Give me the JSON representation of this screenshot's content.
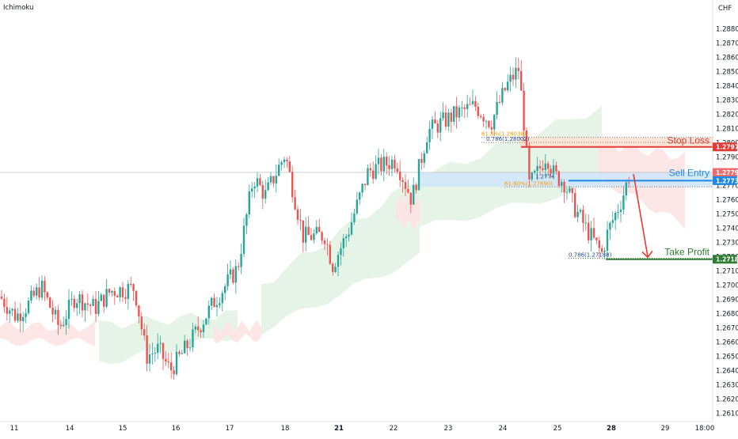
{
  "indicator_label": "Ichimoku",
  "currency": "CHF",
  "colors": {
    "up": "#26a69a",
    "down": "#ef5350",
    "cloud_bull": "#e3f3e6",
    "cloud_bear": "#fde3e3",
    "stop": "#e53935",
    "entry": "#1e88e5",
    "tp": "#2e7d32",
    "fib": "#ff9800"
  },
  "chart_data": {
    "type": "candlestick",
    "ylim": [
      1.2605,
      1.2885
    ],
    "y_ticks": [
      "1.28800",
      "1.28700",
      "1.28600",
      "1.28500",
      "1.28400",
      "1.28300",
      "1.28200",
      "1.28100",
      "1.28000",
      "1.27900",
      "1.27800",
      "1.27700",
      "1.27600",
      "1.27500",
      "1.27400",
      "1.27300",
      "1.27200",
      "1.27100",
      "1.27000",
      "1.26900",
      "1.26800",
      "1.26700",
      "1.26600",
      "1.26500",
      "1.26400",
      "1.26300",
      "1.26200",
      "1.26100"
    ],
    "x_labels": [
      "11",
      "14",
      "15",
      "16",
      "17",
      "18",
      "21",
      "22",
      "23",
      "24",
      "25",
      "28",
      "29",
      "18:00"
    ],
    "x_label_weights": [
      "normal",
      "normal",
      "normal",
      "normal",
      "normal",
      "normal",
      "bold",
      "normal",
      "normal",
      "normal",
      "normal",
      "bold",
      "normal",
      "normal"
    ],
    "anchors": [
      {
        "x": 0,
        "c": 1.2692
      },
      {
        "x": 20,
        "c": 1.2678
      },
      {
        "x": 35,
        "c": 1.2686
      },
      {
        "x": 52,
        "c": 1.2699
      },
      {
        "x": 75,
        "c": 1.267
      },
      {
        "x": 95,
        "c": 1.2692
      },
      {
        "x": 120,
        "c": 1.2684
      },
      {
        "x": 140,
        "c": 1.2696
      },
      {
        "x": 170,
        "c": 1.2698
      },
      {
        "x": 185,
        "c": 1.265
      },
      {
        "x": 200,
        "c": 1.2655
      },
      {
        "x": 215,
        "c": 1.264
      },
      {
        "x": 240,
        "c": 1.266
      },
      {
        "x": 270,
        "c": 1.2688
      },
      {
        "x": 300,
        "c": 1.2712
      },
      {
        "x": 320,
        "c": 1.2776
      },
      {
        "x": 335,
        "c": 1.2763
      },
      {
        "x": 360,
        "c": 1.2792
      },
      {
        "x": 383,
        "c": 1.2734
      },
      {
        "x": 410,
        "c": 1.2735
      },
      {
        "x": 420,
        "c": 1.2714
      },
      {
        "x": 440,
        "c": 1.2738
      },
      {
        "x": 465,
        "c": 1.278
      },
      {
        "x": 500,
        "c": 1.2788
      },
      {
        "x": 520,
        "c": 1.276
      },
      {
        "x": 540,
        "c": 1.2808
      },
      {
        "x": 575,
        "c": 1.282
      },
      {
        "x": 600,
        "c": 1.2826
      },
      {
        "x": 620,
        "c": 1.2814
      },
      {
        "x": 640,
        "c": 1.284
      },
      {
        "x": 655,
        "c": 1.2852
      },
      {
        "x": 662,
        "c": 1.2812
      },
      {
        "x": 668,
        "c": 1.277
      },
      {
        "x": 680,
        "c": 1.278
      },
      {
        "x": 690,
        "c": 1.2792
      },
      {
        "x": 700,
        "c": 1.2777
      },
      {
        "x": 712,
        "c": 1.2773
      },
      {
        "x": 725,
        "c": 1.2755
      },
      {
        "x": 740,
        "c": 1.274
      },
      {
        "x": 760,
        "c": 1.2722
      },
      {
        "x": 768,
        "c": 1.2738
      },
      {
        "x": 785,
        "c": 1.276
      },
      {
        "x": 795,
        "c": 1.2778
      }
    ],
    "cloud_spans": [
      {
        "x": [
          0,
          120
        ],
        "top": [
          1.2671,
          1.2671
        ],
        "bot": [
          1.266,
          1.266
        ],
        "bull": false
      },
      {
        "x": [
          125,
          300
        ],
        "top": [
          1.2672,
          1.268
        ],
        "bot": [
          1.2645,
          1.2665
        ],
        "bull": true
      },
      {
        "x": [
          270,
          330
        ],
        "top": [
          1.267,
          1.2672
        ],
        "bot": [
          1.2662,
          1.2663
        ],
        "bull": false
      },
      {
        "x": [
          330,
          530
        ],
        "top": [
          1.27,
          1.2775
        ],
        "bot": [
          1.2668,
          1.272
        ],
        "bull": true
      },
      {
        "x": [
          500,
          530
        ],
        "top": [
          1.276,
          1.2762
        ],
        "bot": [
          1.2745,
          1.274
        ],
        "bull": false
      },
      {
        "x": [
          530,
          760
        ],
        "top": [
          1.2775,
          1.2825
        ],
        "bot": [
          1.274,
          1.277
        ],
        "bull": true
      },
      {
        "x": [
          755,
          865
        ],
        "top": [
          1.28,
          1.279
        ],
        "bot": [
          1.2775,
          1.2742
        ],
        "bull": false
      }
    ],
    "levels": {
      "stop_loss": {
        "price": 1.27971,
        "label": "Stop Loss",
        "tag": "1.27971"
      },
      "sell_entry": {
        "price": 1.27734,
        "label": "Sell Entry",
        "tag": "1.27734"
      },
      "take_profit": {
        "price": 1.27182,
        "label": "Take Profit",
        "tag": "1.27182"
      },
      "current": {
        "price": 1.27792,
        "tag": "1.27792"
      }
    },
    "zones": [
      {
        "name": "stop-zone",
        "top": 1.28038,
        "bot": 1.27971,
        "x": [
          655,
          900
        ]
      },
      {
        "name": "entry-zone",
        "top": 1.2779,
        "bot": 1.2769,
        "x": [
          530,
          900
        ]
      }
    ],
    "fib_labels": [
      {
        "text": "61.8%(1.28038)",
        "price": 1.28038,
        "x": 608
      },
      {
        "text": "0.786(1.28002)",
        "price": 1.28002,
        "x": 614
      },
      {
        "text": "61.80%(1.27690)",
        "price": 1.2769,
        "x": 637
      },
      {
        "text": "0.786(1.27188)",
        "price": 1.27188,
        "x": 718
      },
      {
        "text": "1.2774",
        "price": 1.2774,
        "x": 676
      }
    ]
  }
}
